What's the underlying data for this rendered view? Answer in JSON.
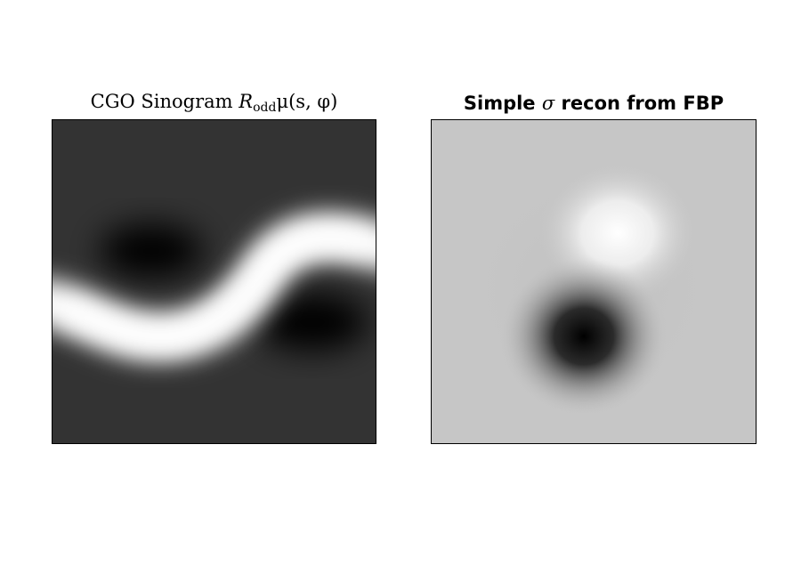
{
  "left_panel": {
    "title_prefix": "CGO Sinogram ",
    "title_R": "R",
    "title_sub": "odd",
    "title_suffix": "μ(s, φ)"
  },
  "right_panel": {
    "title_prefix": "Simple ",
    "title_sigma": "σ",
    "title_suffix": " recon from FBP"
  },
  "colors": {
    "sinogram_background": "#333333",
    "recon_background": "#c6c6c6",
    "axes_frame": "#000000"
  }
}
